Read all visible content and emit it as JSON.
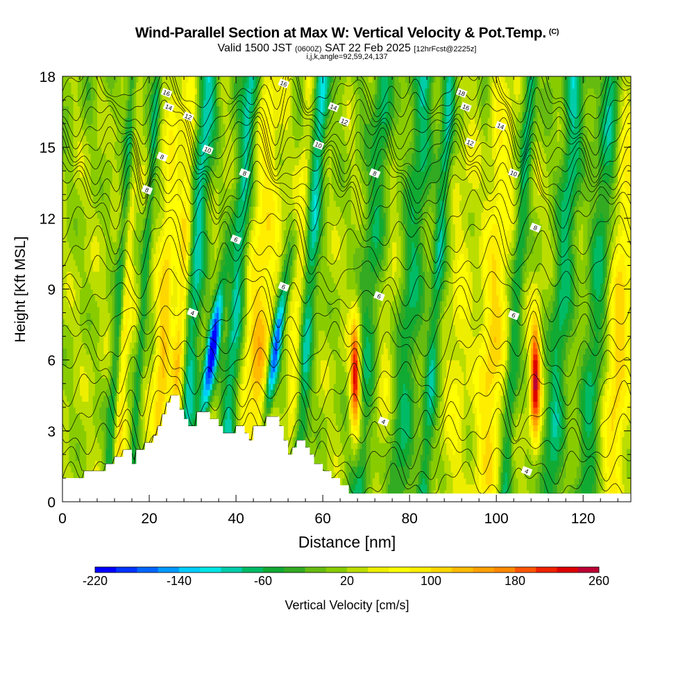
{
  "title": "Wind-Parallel Section at Max W: Vertical Velocity & Pot.Temp.",
  "title_mark": "(C)",
  "subtitle_prefix": "Valid 1500 JST",
  "subtitle_utc": "(0600Z)",
  "subtitle_date": "SAT 22 Feb 2025",
  "subtitle_fcst": "[12hrFcst@2225z]",
  "params": "i,j,k,angle=92,59,24,137",
  "chart_data": {
    "type": "heatmap",
    "xlabel": "Distance [nm]",
    "ylabel": "Height [Kft MSL]",
    "xlim": [
      0,
      131
    ],
    "ylim": [
      0,
      18
    ],
    "x_ticks": [
      0,
      20,
      40,
      60,
      80,
      100,
      120
    ],
    "y_ticks": [
      0,
      3,
      6,
      9,
      12,
      15,
      18
    ],
    "colorbar": {
      "label": "Vertical Velocity [cm/s]",
      "min": -220,
      "max": 260,
      "step": 20,
      "tick_labels": [
        "-220",
        "-140",
        "-60",
        "20",
        "100",
        "180",
        "260"
      ],
      "colors": [
        "#0000ff",
        "#0033ff",
        "#0066ff",
        "#0099ff",
        "#00ccff",
        "#00e5e5",
        "#00ccaa",
        "#00bb66",
        "#11aa33",
        "#33aa22",
        "#66bb11",
        "#88cc00",
        "#bbdd00",
        "#eeee00",
        "#ffff00",
        "#ffee00",
        "#ffd700",
        "#ffbb00",
        "#ffa000",
        "#ff8800",
        "#ff5500",
        "#ee2200",
        "#dd0000",
        "#bb0033",
        "#990055",
        "#770077",
        "#550099"
      ]
    },
    "terrain_kft": [
      [
        0,
        1
      ],
      [
        5,
        1
      ],
      [
        5,
        1.3
      ],
      [
        10,
        1.3
      ],
      [
        10,
        1.6
      ],
      [
        12,
        1.6
      ],
      [
        12,
        1.9
      ],
      [
        14,
        1.9
      ],
      [
        14,
        2.2
      ],
      [
        16,
        2.2
      ],
      [
        16,
        1.6
      ],
      [
        17,
        1.6
      ],
      [
        17,
        2.2
      ],
      [
        19,
        2.2
      ],
      [
        19,
        2.5
      ],
      [
        21,
        2.5
      ],
      [
        21,
        2.8
      ],
      [
        22,
        2.8
      ],
      [
        22,
        3.2
      ],
      [
        23,
        3.2
      ],
      [
        23,
        3.7
      ],
      [
        24,
        3.7
      ],
      [
        24,
        4.2
      ],
      [
        25,
        4.2
      ],
      [
        25,
        4.5
      ],
      [
        27,
        4.5
      ],
      [
        27,
        3.9
      ],
      [
        28,
        3.9
      ],
      [
        28,
        3.5
      ],
      [
        29,
        3.5
      ],
      [
        29,
        3.2
      ],
      [
        31,
        3.2
      ],
      [
        31,
        3.8
      ],
      [
        34,
        3.8
      ],
      [
        34,
        3.5
      ],
      [
        36,
        3.5
      ],
      [
        36,
        3.2
      ],
      [
        37,
        3.2
      ],
      [
        37,
        2.9
      ],
      [
        40,
        2.9
      ],
      [
        40,
        3.2
      ],
      [
        42,
        3.2
      ],
      [
        42,
        2.9
      ],
      [
        43,
        2.9
      ],
      [
        43,
        2.6
      ],
      [
        44,
        2.6
      ],
      [
        44,
        3.2
      ],
      [
        47,
        3.2
      ],
      [
        47,
        3.6
      ],
      [
        50,
        3.6
      ],
      [
        50,
        3.2
      ],
      [
        51,
        3.2
      ],
      [
        51,
        2.6
      ],
      [
        52,
        2.6
      ],
      [
        52,
        2.0
      ],
      [
        53,
        2.0
      ],
      [
        53,
        2.3
      ],
      [
        54,
        2.3
      ],
      [
        54,
        2.6
      ],
      [
        56,
        2.6
      ],
      [
        56,
        2.3
      ],
      [
        57,
        2.3
      ],
      [
        57,
        2.0
      ],
      [
        58,
        2.0
      ],
      [
        58,
        1.6
      ],
      [
        60,
        1.6
      ],
      [
        60,
        1.3
      ],
      [
        62,
        1.3
      ],
      [
        62,
        1.0
      ],
      [
        64,
        1.0
      ],
      [
        64,
        0.7
      ],
      [
        66,
        0.7
      ],
      [
        66,
        0.35
      ],
      [
        68,
        0.35
      ],
      [
        68,
        0.35
      ],
      [
        131,
        0.35
      ]
    ],
    "updraft_bands": [
      {
        "x": 14,
        "w": 1.2,
        "value": 100
      },
      {
        "x": 23,
        "w": 1.8,
        "value": 120
      },
      {
        "x": 27,
        "w": 1.6,
        "value": 140
      },
      {
        "x": 45,
        "w": 3.5,
        "value": 120
      },
      {
        "x": 54,
        "w": 1.6,
        "value": 90
      },
      {
        "x": 67.5,
        "w": 1.2,
        "value": 260
      },
      {
        "x": 74,
        "w": 3,
        "value": 60
      },
      {
        "x": 91,
        "w": 2.5,
        "value": 60
      },
      {
        "x": 99,
        "w": 3,
        "value": 110
      },
      {
        "x": 109,
        "w": 1.2,
        "value": 240
      },
      {
        "x": 128,
        "w": 2.5,
        "value": 110
      }
    ],
    "downdraft_bands": [
      {
        "x": 13,
        "w": 1.2,
        "value": -60
      },
      {
        "x": 18.5,
        "w": 1.0,
        "value": -50
      },
      {
        "x": 30,
        "w": 2.2,
        "value": -90
      },
      {
        "x": 35,
        "w": 1.4,
        "value": -220
      },
      {
        "x": 40,
        "w": 2,
        "value": -90
      },
      {
        "x": 49.5,
        "w": 1.3,
        "value": -210
      },
      {
        "x": 56.5,
        "w": 1.8,
        "value": -90
      },
      {
        "x": 71,
        "w": 3,
        "value": -60
      },
      {
        "x": 80,
        "w": 3,
        "value": -60
      },
      {
        "x": 86,
        "w": 1.5,
        "value": -70
      },
      {
        "x": 104.5,
        "w": 1.5,
        "value": -60
      },
      {
        "x": 115,
        "w": 2.5,
        "value": -70
      },
      {
        "x": 123,
        "w": 2.5,
        "value": -60
      }
    ],
    "theta_contour_labels": [
      {
        "text": "16",
        "x": 24,
        "y": 17.3
      },
      {
        "text": "14",
        "x": 24.5,
        "y": 16.7
      },
      {
        "text": "12",
        "x": 29,
        "y": 16.3
      },
      {
        "text": "8",
        "x": 23,
        "y": 14.6
      },
      {
        "text": "10",
        "x": 33.5,
        "y": 14.9
      },
      {
        "text": "8",
        "x": 19.5,
        "y": 13.2
      },
      {
        "text": "8",
        "x": 42,
        "y": 13.9
      },
      {
        "text": "16",
        "x": 51,
        "y": 17.7
      },
      {
        "text": "14",
        "x": 62.5,
        "y": 16.7
      },
      {
        "text": "12",
        "x": 65,
        "y": 16.1
      },
      {
        "text": "10",
        "x": 59,
        "y": 15.1
      },
      {
        "text": "8",
        "x": 72,
        "y": 13.9
      },
      {
        "text": "18",
        "x": 92,
        "y": 17.3
      },
      {
        "text": "16",
        "x": 93,
        "y": 16.7
      },
      {
        "text": "14",
        "x": 101,
        "y": 15.9
      },
      {
        "text": "12",
        "x": 94,
        "y": 15.2
      },
      {
        "text": "10",
        "x": 104,
        "y": 13.9
      },
      {
        "text": "6",
        "x": 40,
        "y": 11.1
      },
      {
        "text": "8",
        "x": 109,
        "y": 11.6
      },
      {
        "text": "6",
        "x": 51,
        "y": 9.1
      },
      {
        "text": "6",
        "x": 73,
        "y": 8.7
      },
      {
        "text": "6",
        "x": 104,
        "y": 7.9
      },
      {
        "text": "4",
        "x": 30,
        "y": 8.0
      },
      {
        "text": "4",
        "x": 74,
        "y": 3.4
      },
      {
        "text": "4",
        "x": 107,
        "y": 1.3
      }
    ]
  }
}
